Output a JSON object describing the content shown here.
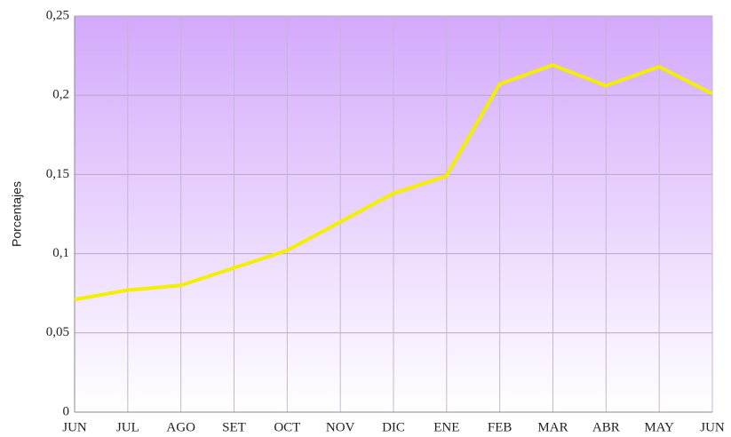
{
  "chart_data": {
    "type": "line",
    "y_label": "Porcentajes",
    "categories": [
      "JUN",
      "JUL",
      "AGO",
      "SET",
      "OCT",
      "NOV",
      "DIC",
      "ENE",
      "FEB",
      "MAR",
      "ABR",
      "MAY",
      "JUN"
    ],
    "values": [
      0.071,
      0.077,
      0.08,
      0.091,
      0.102,
      0.12,
      0.138,
      0.149,
      0.207,
      0.219,
      0.206,
      0.218,
      0.201
    ],
    "color": "#f4ee00",
    "ylim": [
      0,
      0.25
    ],
    "yticks": [
      0,
      {
        "value": 0.05,
        "label": "0,05"
      },
      {
        "value": 0.1,
        "label": "0,1"
      },
      {
        "value": 0.15,
        "label": "0,15"
      },
      {
        "value": 0.2,
        "label": "0,2"
      },
      {
        "value": 0.25,
        "label": "0,25"
      }
    ],
    "grid": true
  }
}
